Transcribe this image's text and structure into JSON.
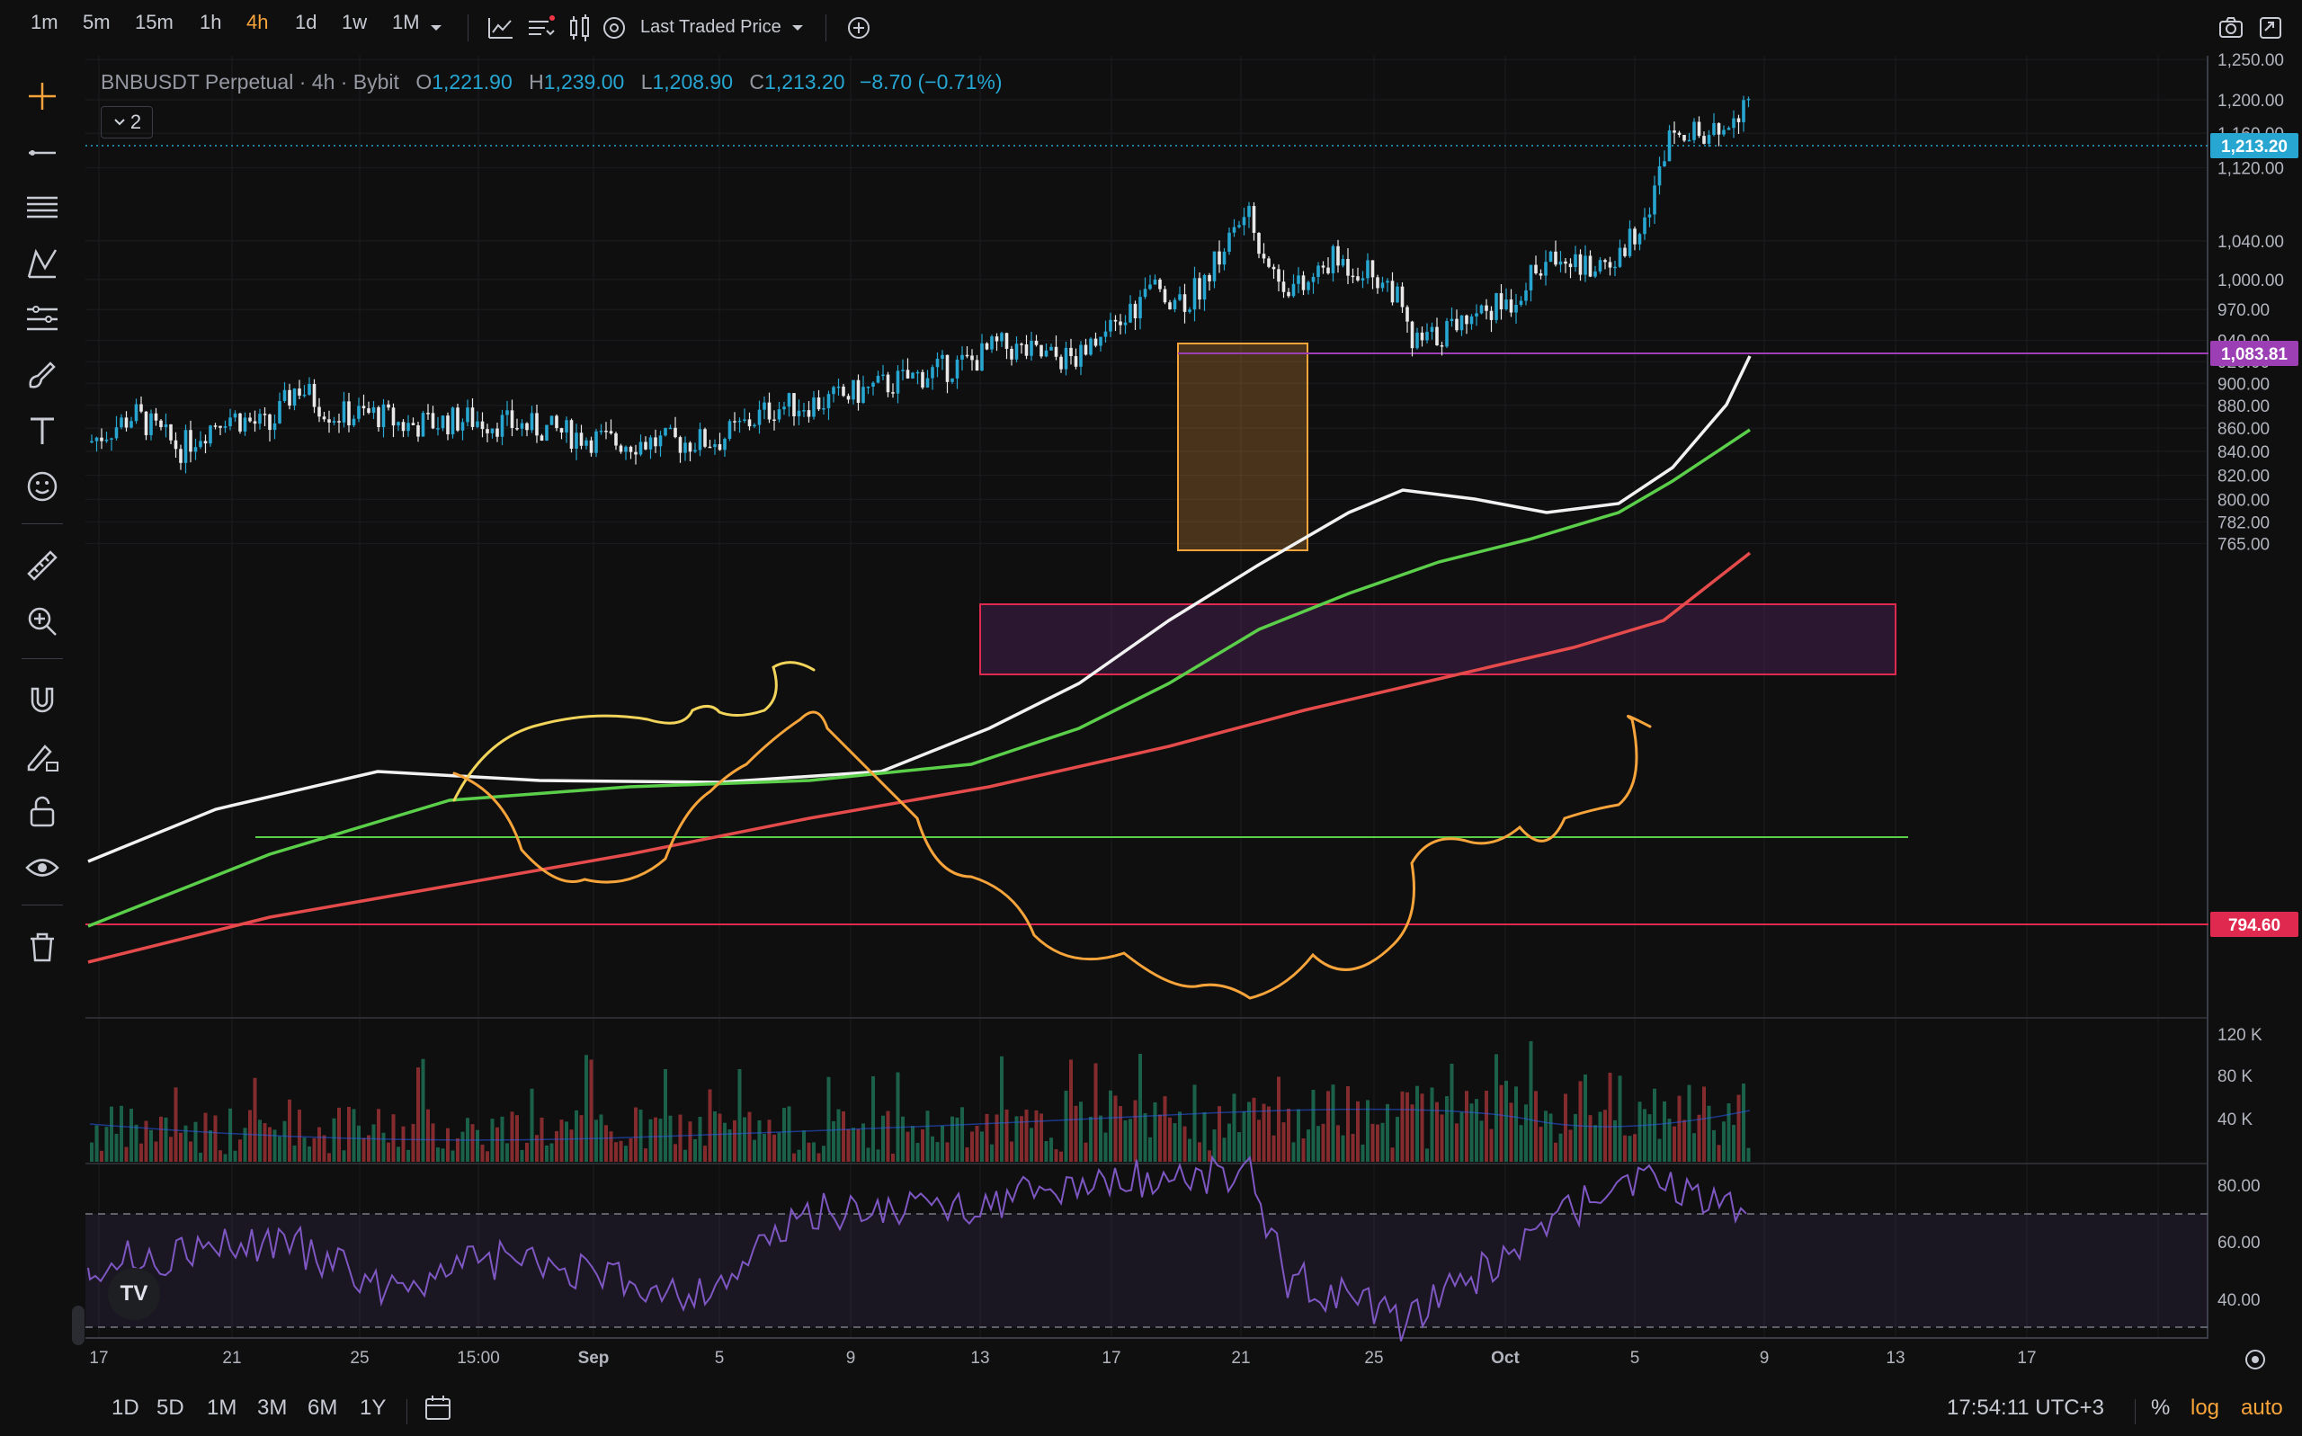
{
  "toolbar": {
    "timeframes": [
      "1m",
      "5m",
      "15m",
      "1h",
      "4h",
      "1d",
      "1w",
      "1M"
    ],
    "active_timeframe": "4h",
    "price_source": "Last Traded Price"
  },
  "legend": {
    "symbol": "BNBUSDT Perpetual · 4h · Bybit",
    "o_label": "O",
    "o": "1,221.90",
    "h_label": "H",
    "h": "1,239.00",
    "l_label": "L",
    "l": "1,208.90",
    "c_label": "C",
    "c": "1,213.20",
    "change": "−8.70 (−0.71%)",
    "collapsed_count": "2"
  },
  "price_axis": {
    "ticks": [
      "1,250.00",
      "1,200.00",
      "1,160.00",
      "1,120.00",
      "1,040.00",
      "1,000.00",
      "970.00",
      "940.00",
      "920.00",
      "900.00",
      "880.00",
      "860.00",
      "840.00",
      "820.00",
      "800.00",
      "782.00",
      "765.00"
    ],
    "badges": [
      {
        "label": "1,213.20",
        "color": "#26a6d1"
      },
      {
        "label": "1,083.81",
        "color": "#9c3fb5"
      },
      {
        "label": "794.60",
        "color": "#e0294f"
      }
    ]
  },
  "volume_axis": {
    "ticks": [
      "120 K",
      "80 K",
      "40 K"
    ]
  },
  "rsi_axis": {
    "ticks": [
      "80.00",
      "60.00",
      "40.00"
    ]
  },
  "time_axis": {
    "ticks": [
      "17",
      "21",
      "25",
      "15:00",
      "Sep",
      "5",
      "9",
      "13",
      "17",
      "21",
      "25",
      "Oct",
      "5",
      "9",
      "13",
      "17"
    ]
  },
  "bottom": {
    "ranges": [
      "1D",
      "5D",
      "1M",
      "3M",
      "6M",
      "1Y"
    ],
    "clock": "17:54:11 UTC+3",
    "percent": "%",
    "log": "log",
    "auto": "auto"
  },
  "colors": {
    "up": "#26a6d1",
    "down": "#e8e8e8",
    "orange": "#f7a43b",
    "ma_white": "#f2f2f2",
    "ma_green": "#5bcf4a",
    "ma_red": "#e54b4b",
    "zone": "#e0294f",
    "rsi": "#7e57c2"
  },
  "icons": [
    "crosshair-icon",
    "trend-line-icon",
    "fib-icon",
    "pattern-icon",
    "projection-icon",
    "brush-icon",
    "text-icon",
    "emoji-icon",
    "ruler-icon",
    "zoom-in-icon",
    "magnet-icon",
    "lock-draw-icon",
    "lock-icon",
    "eye-icon",
    "trash-icon",
    "camera-icon",
    "fullscreen-icon",
    "settings-icon",
    "calendar-icon",
    "plus-circle-icon"
  ]
}
